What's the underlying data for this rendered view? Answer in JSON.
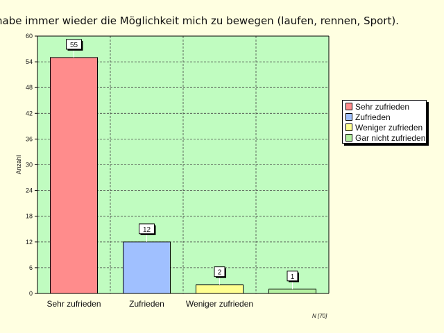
{
  "title": "habe immer wieder die Möglichkeit mich zu bewegen (laufen, rennen, Sport).",
  "footnote": "N [70]",
  "colors": {
    "page_background": "#ffffe1",
    "plot_background": "#c0fcc0"
  },
  "legend": {
    "items": [
      {
        "label": "Sehr zufrieden",
        "color": "#ff8c8c"
      },
      {
        "label": "Zufrieden",
        "color": "#a0c0ff"
      },
      {
        "label": "Weniger zufrieden",
        "color": "#ffff90"
      },
      {
        "label": "Gar nicht zufrieden",
        "color": "#b4f0a0"
      }
    ]
  },
  "chart_data": {
    "type": "bar",
    "categories": [
      "Sehr zufrieden",
      "Zufrieden",
      "Weniger zufrieden",
      ""
    ],
    "values": [
      55,
      12,
      2,
      1
    ],
    "bar_colors": [
      "#ff8c8c",
      "#a0c0ff",
      "#ffff90",
      "#b4f0a0"
    ],
    "ylabel": "Anzahl",
    "ylim": [
      0,
      60
    ],
    "yticks": [
      0,
      6,
      12,
      18,
      24,
      30,
      36,
      42,
      48,
      54,
      60
    ],
    "grid": true,
    "legend_position": "right"
  }
}
